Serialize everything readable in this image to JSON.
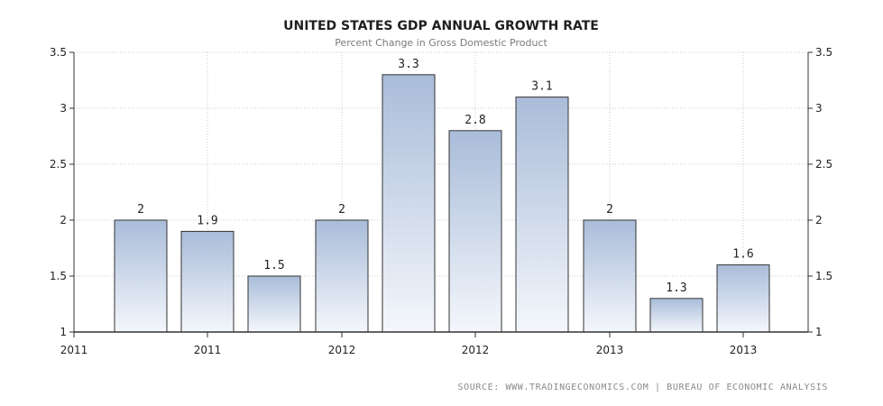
{
  "chart_data": {
    "type": "bar",
    "title": "UNITED STATES GDP ANNUAL GROWTH RATE",
    "subtitle": "Percent Change in Gross Domestic Product",
    "values": [
      2,
      1.9,
      1.5,
      2,
      3.3,
      2.8,
      3.1,
      2,
      1.3,
      1.6
    ],
    "data_labels": [
      "2",
      "1.9",
      "1.5",
      "2",
      "3.3",
      "2.8",
      "3.1",
      "2",
      "1.3",
      "1.6"
    ],
    "x_tick_labels": [
      "2011",
      "2011",
      "2012",
      "2012",
      "2013",
      "2013"
    ],
    "y_ticks": [
      "1",
      "1.5",
      "2",
      "2.5",
      "3",
      "3.5"
    ],
    "ylim": [
      1,
      3.5
    ],
    "grid": true,
    "colors": {
      "bar_top": "#a9bcd9",
      "bar_bottom": "#f4f7fc",
      "bar_border": "#333333",
      "grid": "#c8c8c8",
      "axis": "#333333"
    }
  },
  "source": "SOURCE: WWW.TRADINGECONOMICS.COM | BUREAU OF ECONOMIC ANALYSIS"
}
